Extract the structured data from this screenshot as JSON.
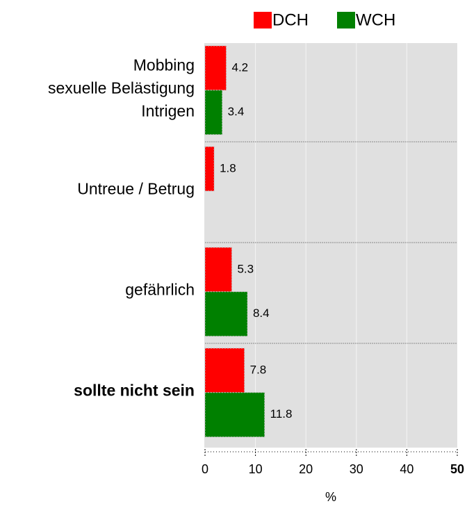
{
  "chart_data": {
    "type": "bar",
    "orientation": "horizontal",
    "categories": [
      [
        "Mobbing",
        "sexuelle Belästigung",
        "Intrigen"
      ],
      "Untreue / Betrug",
      "gefährlich",
      "sollte nicht sein"
    ],
    "series": [
      {
        "name": "DCH",
        "color": "#ff0000",
        "values": [
          4.2,
          1.8,
          5.3,
          7.8
        ]
      },
      {
        "name": "WCH",
        "color": "#008000",
        "values": [
          3.4,
          null,
          8.4,
          11.8
        ]
      }
    ],
    "xlim": [
      0,
      50
    ],
    "xticks": [
      0,
      10,
      20,
      30,
      40,
      50
    ],
    "xlabel": "%",
    "grid": true,
    "legend": "top"
  }
}
